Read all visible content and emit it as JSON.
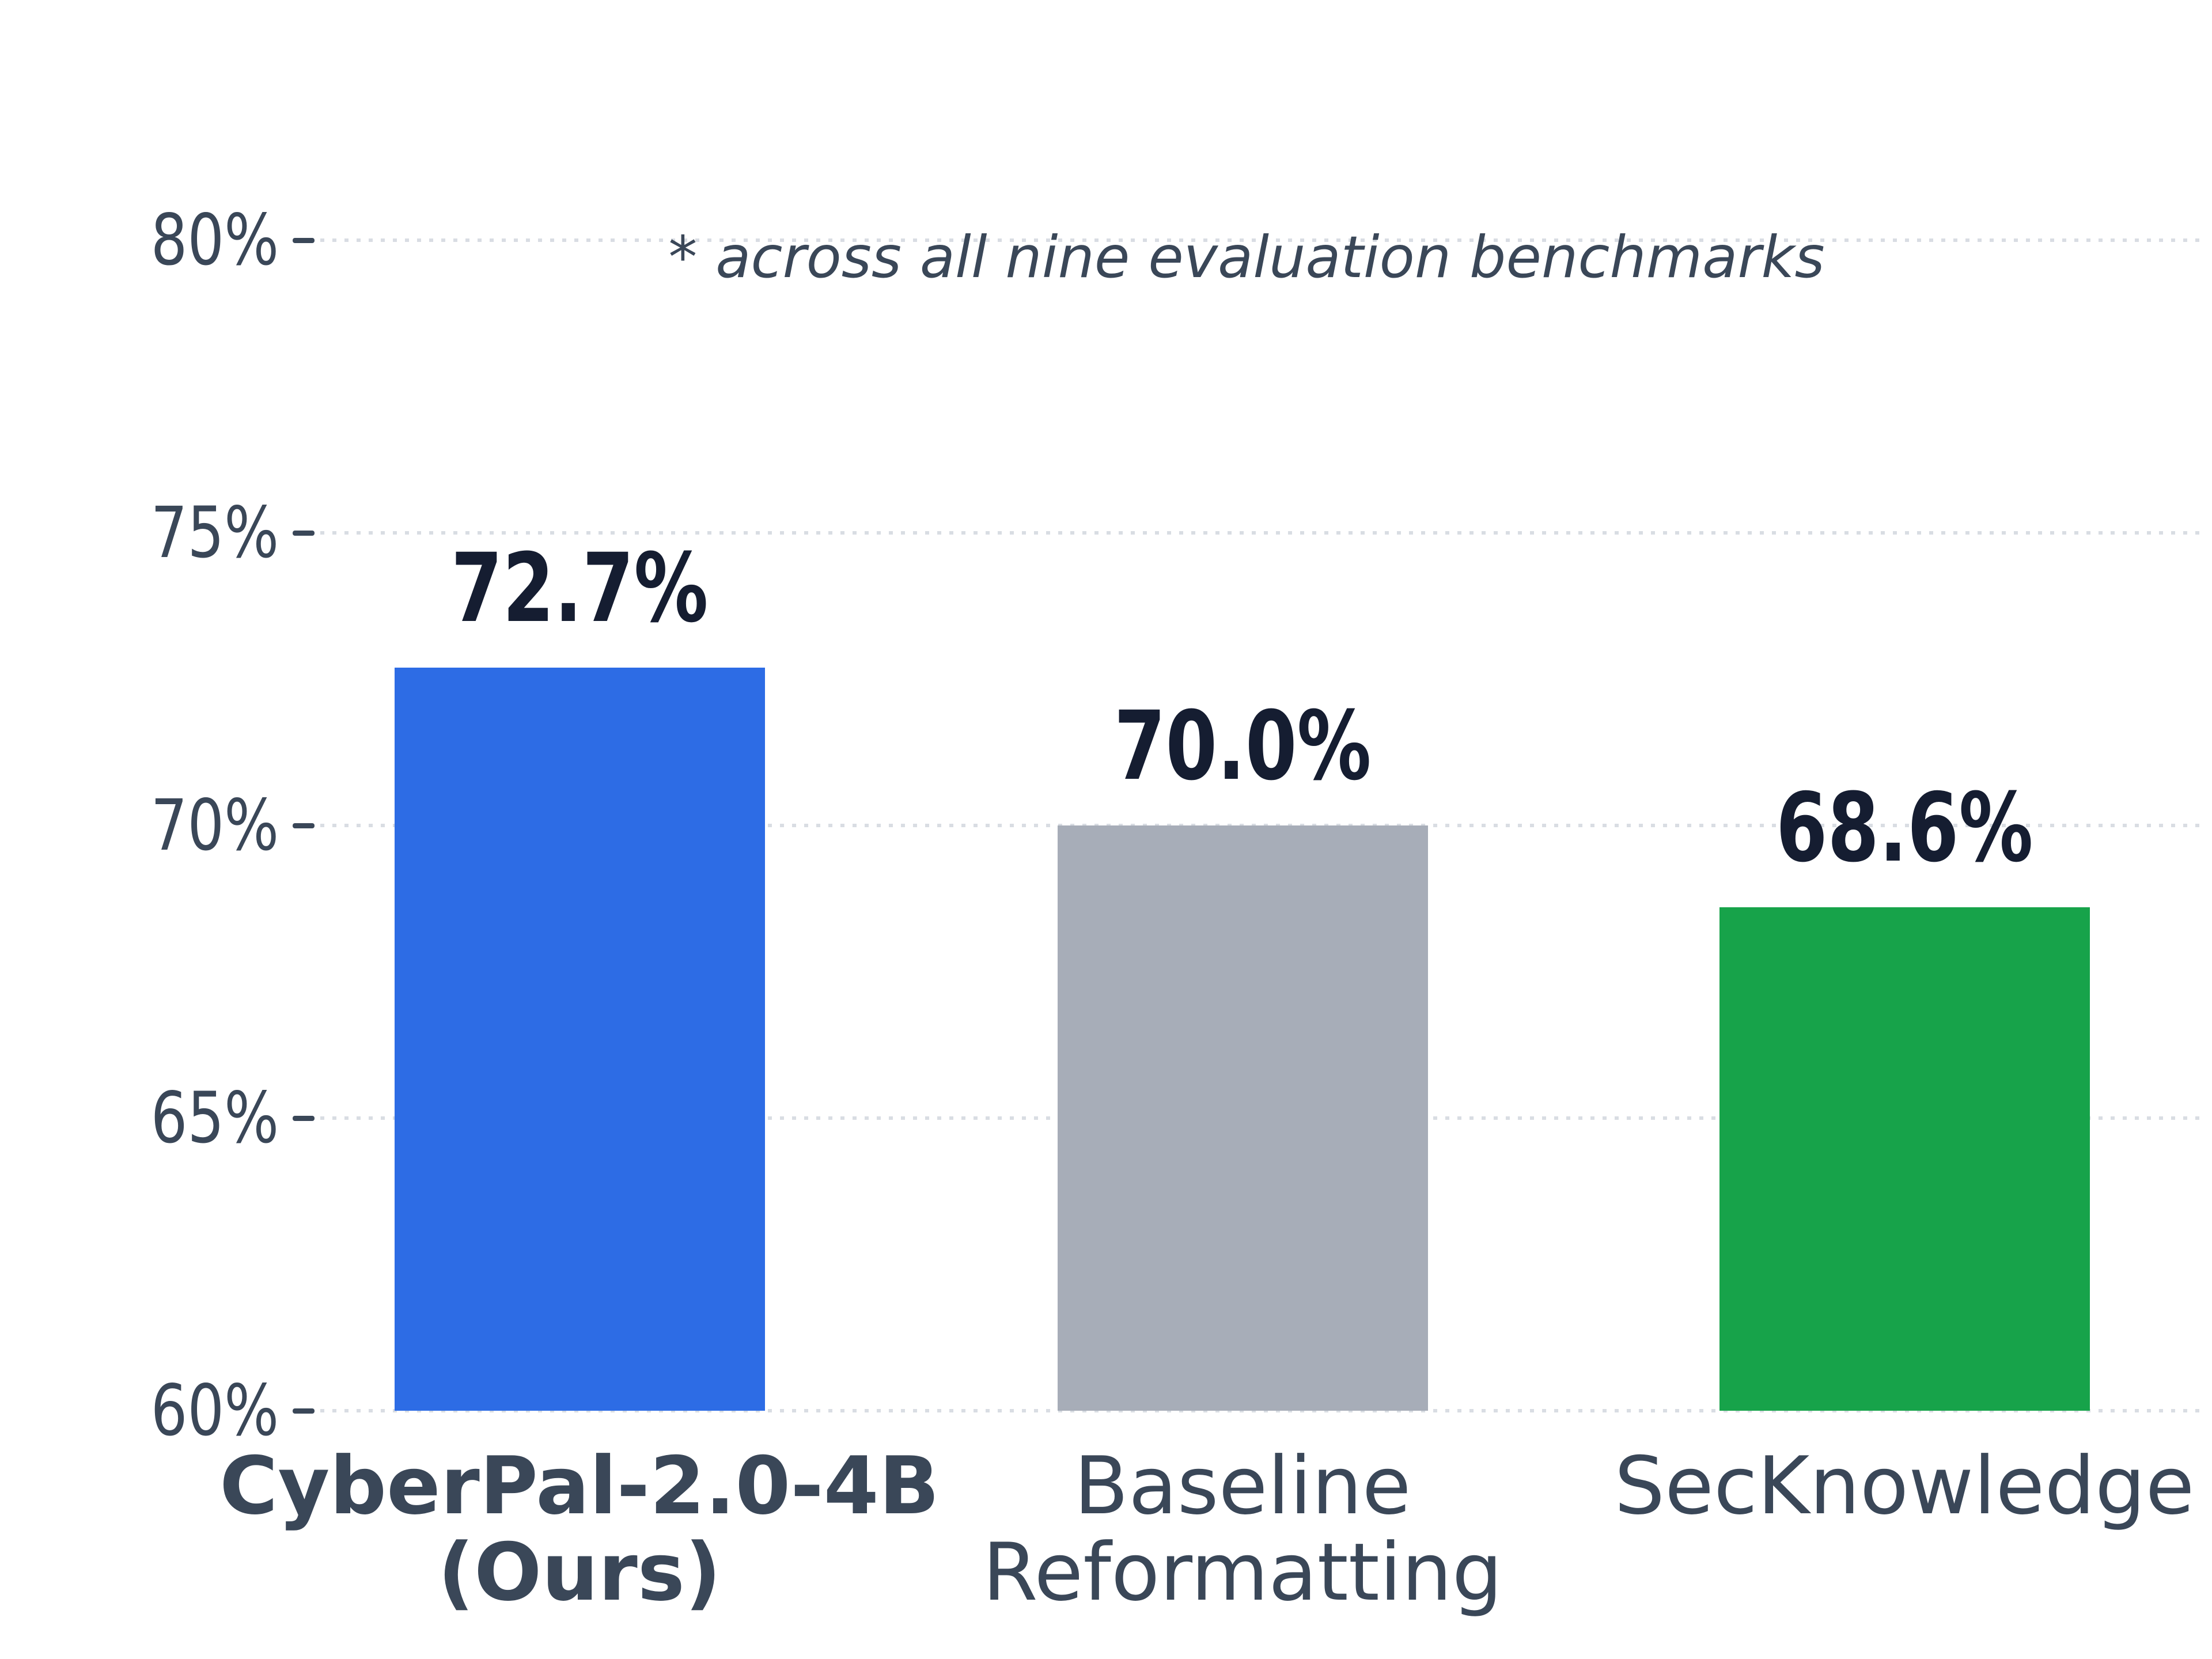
{
  "chart_data": {
    "type": "bar",
    "title": "",
    "xlabel": "",
    "ylabel": "",
    "annotation": "* across all nine evaluation benchmarks",
    "categories": [
      "CyberPal-2.0-4B\n(Ours)",
      "Baseline\nReformatting",
      "SecKnowledge"
    ],
    "values": [
      72.7,
      70.0,
      68.6
    ],
    "value_labels": [
      "72.7%",
      "70.0%",
      "68.6%"
    ],
    "series_colors": [
      "#2d6ce5",
      "#a7adb8",
      "#17a34a"
    ],
    "emphasized_category_index": 0,
    "ylim": [
      60,
      80
    ],
    "yticks": [
      60,
      65,
      70,
      75,
      80
    ],
    "ytick_labels": [
      "60%",
      "65%",
      "70%",
      "75%",
      "80%"
    ],
    "grid": {
      "horizontal": true,
      "style": "dotted"
    },
    "legend_position": "none"
  },
  "style": {
    "background": "#ffffff",
    "axis_text_color": "#3a4758",
    "value_text_color": "#151d31",
    "grid_color": "#d9dde3"
  }
}
